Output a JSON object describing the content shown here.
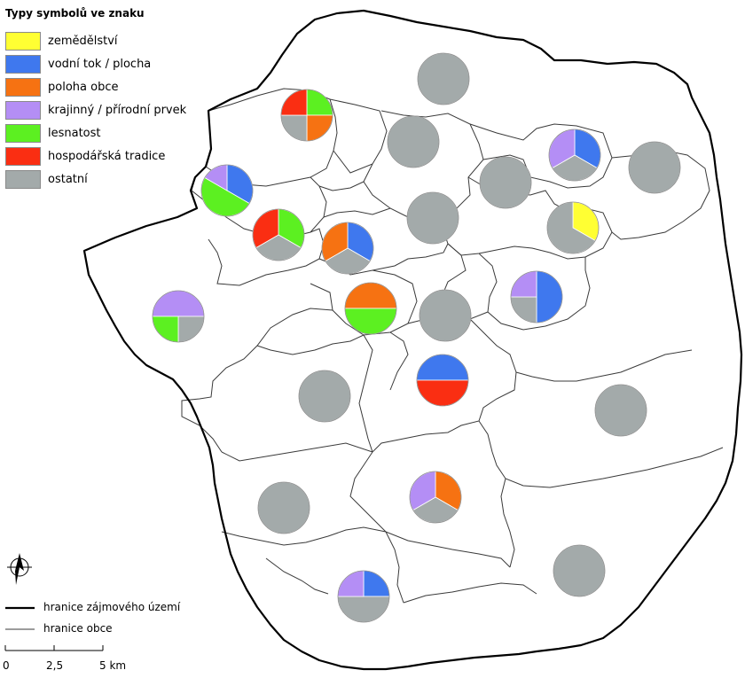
{
  "legend": {
    "title": "Typy symbolů ve znaku",
    "items": [
      {
        "label": "zemědělství",
        "color": "#ffff33"
      },
      {
        "label": "vodní tok / plocha",
        "color": "#3f78ee"
      },
      {
        "label": "poloha obce",
        "color": "#f67212"
      },
      {
        "label": "krajinný / přírodní prvek",
        "color": "#b48ef5"
      },
      {
        "label": "lesnatost",
        "color": "#5cf021"
      },
      {
        "label": "hospodářská tradice",
        "color": "#fa2e12"
      },
      {
        "label": "ostatní",
        "color": "#a3aaaa"
      }
    ]
  },
  "boundary_legend": {
    "study_area": "hranice zájmového území",
    "municipality": "hranice obce"
  },
  "scale_bar": {
    "labels": [
      "0",
      "2,5",
      "5 km"
    ]
  },
  "symbols": [
    {
      "name": "pie-north-central",
      "slices": [
        {
          "category": "ostatní",
          "share": 1
        }
      ]
    },
    {
      "name": "pie-northwest-quad",
      "slices": [
        {
          "category": "lesnatost",
          "share": 0.25
        },
        {
          "category": "poloha obce",
          "share": 0.25
        },
        {
          "category": "ostatní",
          "share": 0.25
        },
        {
          "category": "hospodářská tradice",
          "share": 0.25
        }
      ]
    },
    {
      "name": "pie-north-2",
      "slices": [
        {
          "category": "ostatní",
          "share": 1
        }
      ]
    },
    {
      "name": "pie-northeast-1",
      "slices": [
        {
          "category": "vodní tok / plocha",
          "share": 0.3333
        },
        {
          "category": "ostatní",
          "share": 0.3333
        },
        {
          "category": "krajinný / přírodní prvek",
          "share": 0.3333
        }
      ]
    },
    {
      "name": "pie-east-1",
      "slices": [
        {
          "category": "ostatní",
          "share": 1
        }
      ]
    },
    {
      "name": "pie-center-north",
      "slices": [
        {
          "category": "ostatní",
          "share": 1
        }
      ]
    },
    {
      "name": "pie-west-1",
      "slices": [
        {
          "category": "vodní tok / plocha",
          "share": 0.3333
        },
        {
          "category": "lesnatost",
          "share": 0.5
        },
        {
          "category": "krajinný / přírodní prvek",
          "share": 0.1667
        }
      ]
    },
    {
      "name": "pie-center-1",
      "slices": [
        {
          "category": "ostatní",
          "share": 1
        }
      ]
    },
    {
      "name": "pie-northeast-2",
      "slices": [
        {
          "category": "zemědělství",
          "share": 0.3333
        },
        {
          "category": "ostatní",
          "share": 0.6667
        }
      ]
    },
    {
      "name": "pie-west-2",
      "slices": [
        {
          "category": "lesnatost",
          "share": 0.3333
        },
        {
          "category": "ostatní",
          "share": 0.3333
        },
        {
          "category": "hospodářská tradice",
          "share": 0.3333
        }
      ]
    },
    {
      "name": "pie-center-2",
      "slices": [
        {
          "category": "vodní tok / plocha",
          "share": 0.3333
        },
        {
          "category": "ostatní",
          "share": 0.3333
        },
        {
          "category": "poloha obce",
          "share": 0.3333
        }
      ]
    },
    {
      "name": "pie-east-2",
      "slices": [
        {
          "category": "vodní tok / plocha",
          "share": 0.5
        },
        {
          "category": "ostatní",
          "share": 0.25
        },
        {
          "category": "krajinný / přírodní prvek",
          "share": 0.25
        }
      ]
    },
    {
      "name": "pie-far-west",
      "slices": [
        {
          "category": "krajinný / přírodní prvek",
          "share": 0.5
        },
        {
          "category": "ostatní",
          "share": 0.25
        },
        {
          "category": "lesnatost",
          "share": 0.25
        }
      ]
    },
    {
      "name": "pie-center-3",
      "slices": [
        {
          "category": "poloha obce",
          "share": 0.5
        },
        {
          "category": "lesnatost",
          "share": 0.5
        }
      ]
    },
    {
      "name": "pie-center-4",
      "slices": [
        {
          "category": "ostatní",
          "share": 1
        }
      ]
    },
    {
      "name": "pie-center-5",
      "slices": [
        {
          "category": "vodní tok / plocha",
          "share": 0.5
        },
        {
          "category": "hospodářská tradice",
          "share": 0.5
        }
      ]
    },
    {
      "name": "pie-southwest-1",
      "slices": [
        {
          "category": "ostatní",
          "share": 1
        }
      ]
    },
    {
      "name": "pie-east-3",
      "slices": [
        {
          "category": "ostatní",
          "share": 1
        }
      ]
    },
    {
      "name": "pie-south-center",
      "slices": [
        {
          "category": "poloha obce",
          "share": 0.3333
        },
        {
          "category": "ostatní",
          "share": 0.3333
        },
        {
          "category": "krajinný / přírodní prvek",
          "share": 0.3333
        }
      ]
    },
    {
      "name": "pie-southwest-2",
      "slices": [
        {
          "category": "ostatní",
          "share": 1
        }
      ]
    },
    {
      "name": "pie-southeast",
      "slices": [
        {
          "category": "ostatní",
          "share": 1
        }
      ]
    },
    {
      "name": "pie-south",
      "slices": [
        {
          "category": "vodní tok / plocha",
          "share": 0.25
        },
        {
          "category": "ostatní",
          "share": 0.5
        },
        {
          "category": "krajinný / přírodní prvek",
          "share": 0.25
        }
      ]
    }
  ]
}
